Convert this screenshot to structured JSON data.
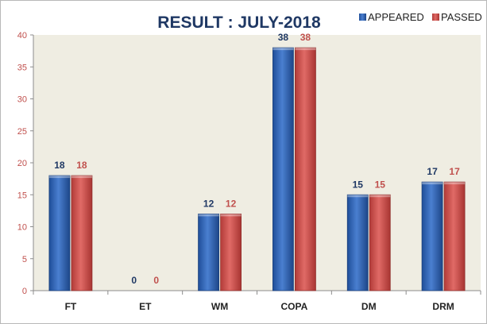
{
  "colors": {
    "appeared": "#2e5fa8",
    "passed": "#c9504d",
    "appeared_label": "#1f3864",
    "passed_label": "#c0504d",
    "plot_background": "#efede2",
    "axis_tick": "#c0504d"
  },
  "chart_data": {
    "type": "bar",
    "title": "RESULT : JULY-2018",
    "categories": [
      "FT",
      "ET",
      "WM",
      "COPA",
      "DM",
      "DRM"
    ],
    "series": [
      {
        "name": "APPEARED",
        "values": [
          18,
          0,
          12,
          38,
          15,
          17
        ]
      },
      {
        "name": "PASSED",
        "values": [
          18,
          0,
          12,
          38,
          15,
          17
        ]
      }
    ],
    "ylim": [
      0,
      40
    ],
    "yticks": [
      "0",
      "5",
      "10",
      "15",
      "20",
      "25",
      "30",
      "35",
      "40"
    ],
    "xlabel": "",
    "ylabel": "",
    "grid": false,
    "legend_position": "top-right",
    "data_labels": true
  }
}
